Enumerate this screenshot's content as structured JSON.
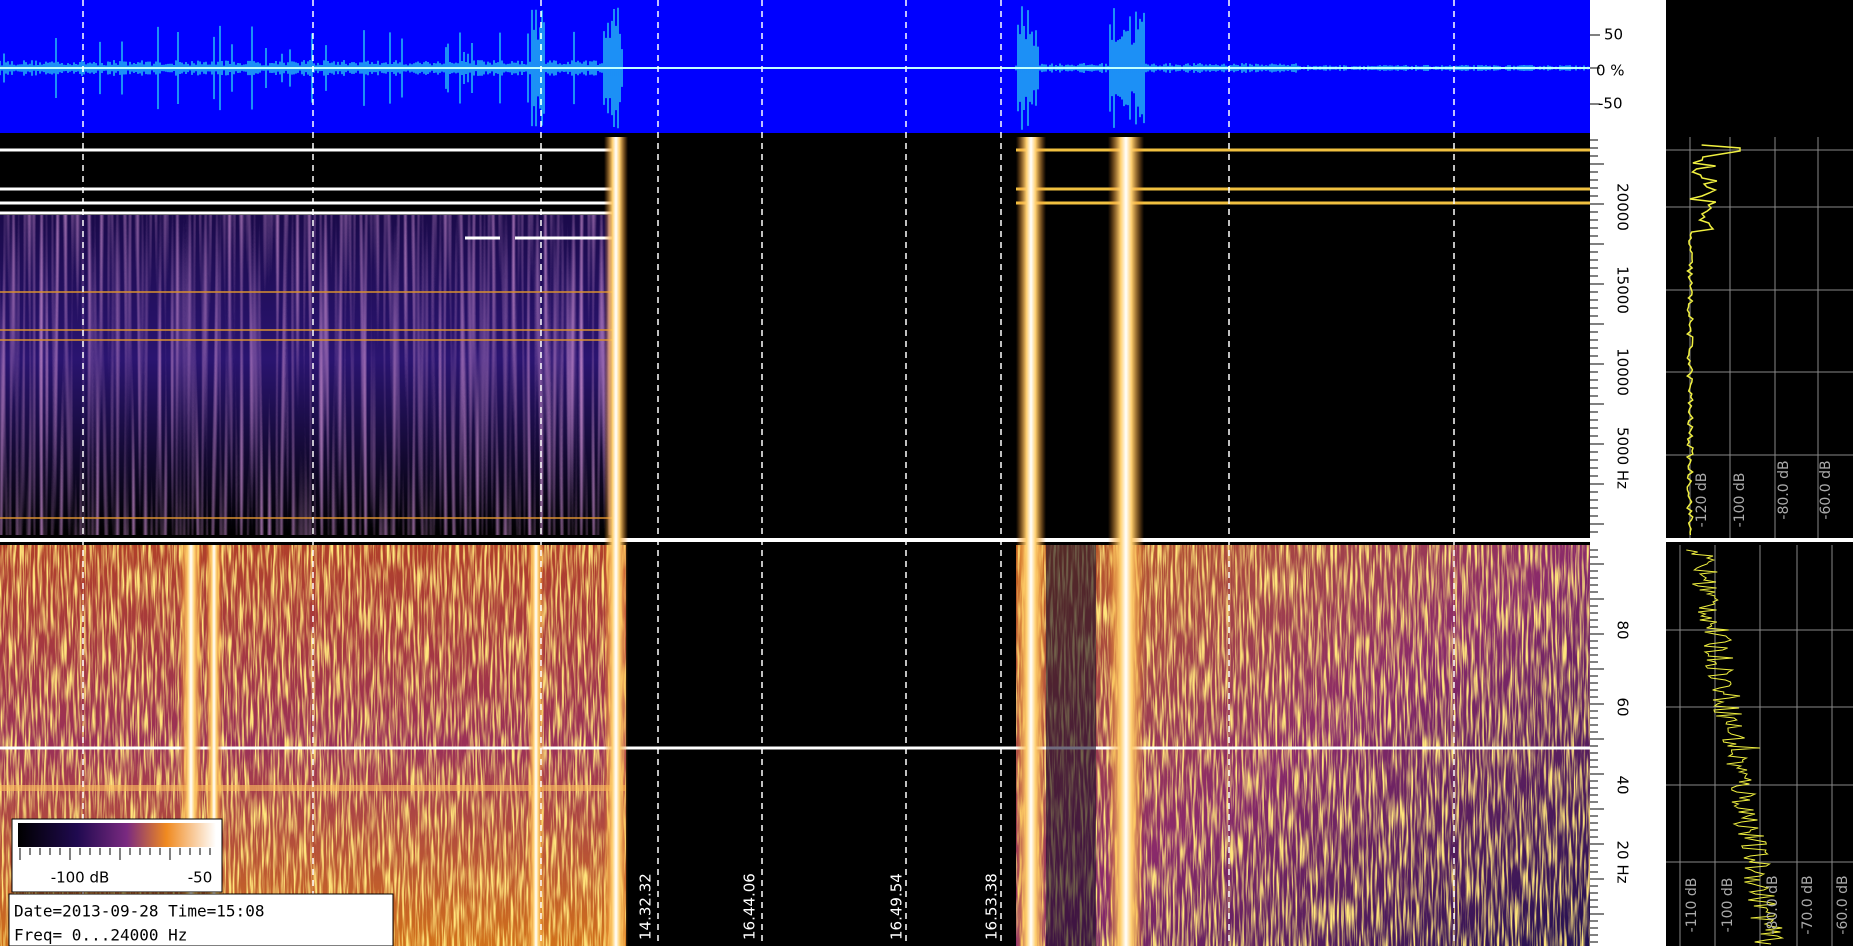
{
  "waveform": {
    "scale_labels": [
      "50",
      "0 %",
      "-50"
    ]
  },
  "upper_spectrogram": {
    "frequency_labels": [
      "20000",
      "15000",
      "10000",
      "5000 Hz"
    ],
    "spectrum_labels": [
      "-120 dB",
      "-100 dB",
      "-80.0 dB",
      "-60.0 dB"
    ]
  },
  "lower_spectrogram": {
    "frequency_labels": [
      "80",
      "60",
      "40",
      "20 Hz"
    ],
    "spectrum_labels": [
      "-110 dB",
      "-100 dB",
      "-80.0 dB",
      "-70.0 dB",
      "-60.0 dB"
    ]
  },
  "time_labels": [
    "14.32.32",
    "16.44.06",
    "16.49.54",
    "16.53.38"
  ],
  "color_bar": {
    "labels": [
      "-100 dB",
      "-50"
    ]
  },
  "info": {
    "date_time": "Date=2013-09-28 Time=15:08",
    "frequency_range": "Freq= 0...24000 Hz"
  }
}
